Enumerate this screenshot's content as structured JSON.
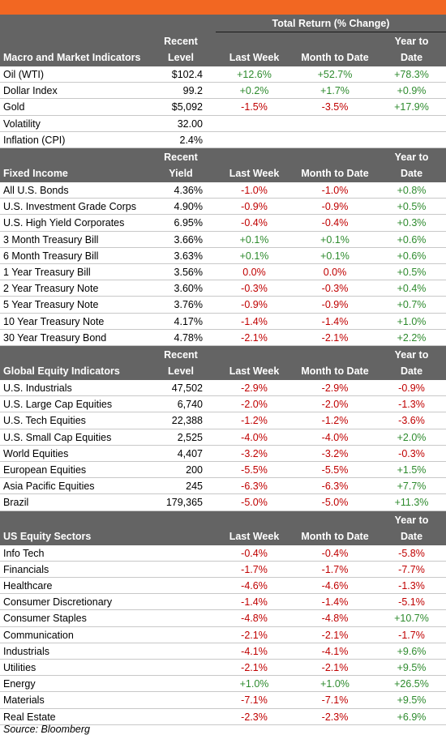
{
  "header": {
    "total_return": "Total Return (% Change)"
  },
  "sections": [
    {
      "title": "Macro and Market Indicators",
      "level_header": [
        "Recent",
        "Level"
      ],
      "lw_header": "Last Week",
      "mtd_header": "Month to Date",
      "ytd_header": [
        "Year to",
        "Date"
      ],
      "rows": [
        {
          "name": "Oil (WTI)",
          "level": "$102.4",
          "lw": "+12.6%",
          "mtd": "+52.7%",
          "ytd": "+78.3%"
        },
        {
          "name": "Dollar Index",
          "level": "99.2",
          "lw": "+0.2%",
          "mtd": "+1.7%",
          "ytd": "+0.9%"
        },
        {
          "name": "Gold",
          "level": "$5,092",
          "lw": "-1.5%",
          "mtd": "-3.5%",
          "ytd": "+17.9%"
        },
        {
          "name": "Volatility",
          "level": "32.00",
          "lw": "",
          "mtd": "",
          "ytd": ""
        },
        {
          "name": "Inflation (CPI)",
          "level": "2.4%",
          "lw": "",
          "mtd": "",
          "ytd": ""
        }
      ]
    },
    {
      "title": "Fixed Income",
      "level_header": [
        "Recent",
        "Yield"
      ],
      "lw_header": "Last Week",
      "mtd_header": "Month to Date",
      "ytd_header": [
        "Year to",
        "Date"
      ],
      "rows": [
        {
          "name": "All U.S. Bonds",
          "level": "4.36%",
          "lw": "-1.0%",
          "mtd": "-1.0%",
          "ytd": "+0.8%"
        },
        {
          "name": "U.S. Investment Grade Corps",
          "level": "4.90%",
          "lw": "-0.9%",
          "mtd": "-0.9%",
          "ytd": "+0.5%"
        },
        {
          "name": "U.S. High Yield Corporates",
          "level": "6.95%",
          "lw": "-0.4%",
          "mtd": "-0.4%",
          "ytd": "+0.3%"
        },
        {
          "name": "3 Month Treasury Bill",
          "level": "3.66%",
          "lw": "+0.1%",
          "mtd": "+0.1%",
          "ytd": "+0.6%"
        },
        {
          "name": "6 Month Treasury Bill",
          "level": "3.63%",
          "lw": "+0.1%",
          "mtd": "+0.1%",
          "ytd": "+0.6%"
        },
        {
          "name": "1 Year Treasury Bill",
          "level": "3.56%",
          "lw": "0.0%",
          "mtd": "0.0%",
          "ytd": "+0.5%"
        },
        {
          "name": "2 Year Treasury Note",
          "level": "3.60%",
          "lw": "-0.3%",
          "mtd": "-0.3%",
          "ytd": "+0.4%"
        },
        {
          "name": "5 Year Treasury Note",
          "level": "3.76%",
          "lw": "-0.9%",
          "mtd": "-0.9%",
          "ytd": "+0.7%"
        },
        {
          "name": "10 Year Treasury Note",
          "level": "4.17%",
          "lw": "-1.4%",
          "mtd": "-1.4%",
          "ytd": "+1.0%"
        },
        {
          "name": "30 Year Treasury Bond",
          "level": "4.78%",
          "lw": "-2.1%",
          "mtd": "-2.1%",
          "ytd": "+2.2%"
        }
      ]
    },
    {
      "title": "Global Equity Indicators",
      "level_header": [
        "Recent",
        "Level"
      ],
      "lw_header": "Last Week",
      "mtd_header": "Month to Date",
      "ytd_header": [
        "Year to",
        "Date"
      ],
      "rows": [
        {
          "name": "U.S. Industrials",
          "level": "47,502",
          "lw": "-2.9%",
          "mtd": "-2.9%",
          "ytd": "-0.9%"
        },
        {
          "name": "U.S. Large Cap Equities",
          "level": "6,740",
          "lw": "-2.0%",
          "mtd": "-2.0%",
          "ytd": "-1.3%"
        },
        {
          "name": "U.S. Tech Equities",
          "level": "22,388",
          "lw": "-1.2%",
          "mtd": "-1.2%",
          "ytd": "-3.6%"
        },
        {
          "name": "U.S. Small Cap Equities",
          "level": "2,525",
          "lw": "-4.0%",
          "mtd": "-4.0%",
          "ytd": "+2.0%"
        },
        {
          "name": "World Equities",
          "level": "4,407",
          "lw": "-3.2%",
          "mtd": "-3.2%",
          "ytd": "-0.3%"
        },
        {
          "name": "European Equities",
          "level": "200",
          "lw": "-5.5%",
          "mtd": "-5.5%",
          "ytd": "+1.5%"
        },
        {
          "name": "Asia Pacific Equities",
          "level": "245",
          "lw": "-6.3%",
          "mtd": "-6.3%",
          "ytd": "+7.7%"
        },
        {
          "name": "Brazil",
          "level": "179,365",
          "lw": "-5.0%",
          "mtd": "-5.0%",
          "ytd": "+11.3%"
        }
      ]
    },
    {
      "title": "US Equity Sectors",
      "level_header": [
        "",
        ""
      ],
      "lw_header": "Last Week",
      "mtd_header": "Month to Date",
      "ytd_header": [
        "Year to",
        "Date"
      ],
      "rows": [
        {
          "name": "Info Tech",
          "level": "",
          "lw": "-0.4%",
          "mtd": "-0.4%",
          "ytd": "-5.8%"
        },
        {
          "name": "Financials",
          "level": "",
          "lw": "-1.7%",
          "mtd": "-1.7%",
          "ytd": "-7.7%"
        },
        {
          "name": "Healthcare",
          "level": "",
          "lw": "-4.6%",
          "mtd": "-4.6%",
          "ytd": "-1.3%"
        },
        {
          "name": "Consumer Discretionary",
          "level": "",
          "lw": "-1.4%",
          "mtd": "-1.4%",
          "ytd": "-5.1%"
        },
        {
          "name": "Consumer Staples",
          "level": "",
          "lw": "-4.8%",
          "mtd": "-4.8%",
          "ytd": "+10.7%"
        },
        {
          "name": "Communication",
          "level": "",
          "lw": "-2.1%",
          "mtd": "-2.1%",
          "ytd": "-1.7%"
        },
        {
          "name": "Industrials",
          "level": "",
          "lw": "-4.1%",
          "mtd": "-4.1%",
          "ytd": "+9.6%"
        },
        {
          "name": "Utilities",
          "level": "",
          "lw": "-2.1%",
          "mtd": "-2.1%",
          "ytd": "+9.5%"
        },
        {
          "name": "Energy",
          "level": "",
          "lw": "+1.0%",
          "mtd": "+1.0%",
          "ytd": "+26.5%"
        },
        {
          "name": "Materials",
          "level": "",
          "lw": "-7.1%",
          "mtd": "-7.1%",
          "ytd": "+9.5%"
        },
        {
          "name": "Real Estate",
          "level": "",
          "lw": "-2.3%",
          "mtd": "-2.3%",
          "ytd": "+6.9%"
        }
      ]
    }
  ],
  "source": "Source: Bloomberg",
  "colors": {
    "accent_bar": "#f26722",
    "header_bg": "#646464",
    "positive": "#2e8b2e",
    "negative": "#c00000"
  }
}
